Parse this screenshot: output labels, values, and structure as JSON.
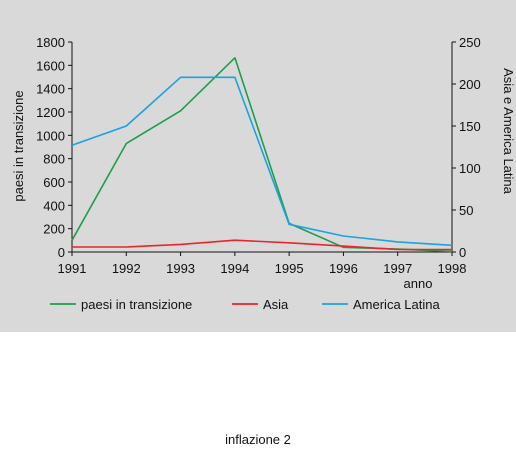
{
  "chart_data": {
    "type": "line",
    "x": [
      1991,
      1992,
      1993,
      1994,
      1995,
      1996,
      1997,
      1998
    ],
    "xlabel": "anno",
    "ylabel": "paesi in transizione",
    "ylabel_right": "Asia e America Latina",
    "ylim": [
      0,
      1800
    ],
    "ylim_right": [
      0,
      250
    ],
    "yticks": [
      "0",
      "200",
      "400",
      "600",
      "800",
      "1000",
      "1200",
      "1400",
      "1600",
      "1800"
    ],
    "yticks_right": [
      "0",
      "50",
      "100",
      "150",
      "200",
      "250"
    ],
    "xticks": [
      "1991",
      "1992",
      "1993",
      "1994",
      "1995",
      "1996",
      "1997",
      "1998"
    ],
    "grid": false,
    "legend_position": "bottom",
    "series": [
      {
        "name": "paesi in transizione",
        "axis": "left",
        "color": "#1e9e4a",
        "values": [
          100,
          930,
          1210,
          1665,
          245,
          40,
          25,
          5
        ]
      },
      {
        "name": "Asia",
        "axis": "right",
        "color": "#e8262b",
        "values": [
          6,
          6,
          9,
          14,
          11,
          7,
          3,
          3
        ]
      },
      {
        "name": "America Latina",
        "axis": "right",
        "color": "#1aa3e0",
        "values": [
          127,
          150,
          208,
          208,
          33,
          19,
          12,
          8
        ]
      }
    ]
  },
  "caption": "inflazione 2"
}
